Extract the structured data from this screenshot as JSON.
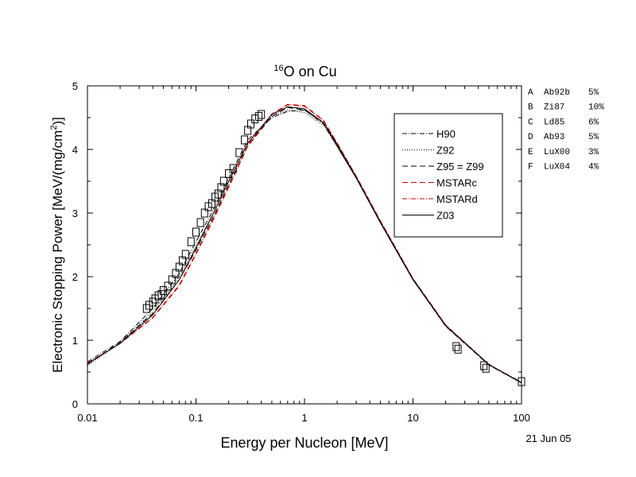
{
  "chart_data": {
    "type": "line",
    "title_sup": "16",
    "title": "O on Cu",
    "xlabel": "Energy per Nucleon [MeV]",
    "ylabel_main": "Electronic Stopping Power [MeV/(mg/cm",
    "ylabel_sup": "2",
    "ylabel_tail": ")]",
    "x_scale": "log",
    "xlim": [
      0.01,
      100
    ],
    "ylim": [
      0,
      5
    ],
    "x_ticks": [
      0.01,
      0.1,
      1,
      10,
      100
    ],
    "x_tick_labels": [
      "0.01",
      "0.1",
      "1",
      "10",
      "100"
    ],
    "y_ticks": [
      0,
      1,
      2,
      3,
      4,
      5
    ],
    "y_tick_labels": [
      "0",
      "1",
      "2",
      "3",
      "4",
      "5"
    ],
    "grid": false,
    "legend_position": "top-right",
    "date": "21 Jun 05",
    "datasets": [
      {
        "label": "A",
        "ref": "Ab92b",
        "err": "5%"
      },
      {
        "label": "B",
        "ref": "Zi87",
        "err": "10%"
      },
      {
        "label": "C",
        "ref": "Ld85",
        "err": "6%"
      },
      {
        "label": "D",
        "ref": "Ab93",
        "err": "5%"
      },
      {
        "label": "E",
        "ref": "LuX00",
        "err": "3%"
      },
      {
        "label": "F",
        "ref": "LuX04",
        "err": "4%"
      }
    ],
    "series": [
      {
        "name": "H90",
        "color": "#000000",
        "dash": "6,2,1,2",
        "x": [
          0.01,
          0.02,
          0.04,
          0.07,
          0.1,
          0.15,
          0.2,
          0.3,
          0.5,
          0.7,
          1,
          1.5,
          2,
          3,
          5,
          10,
          20,
          50,
          100
        ],
        "y": [
          0.66,
          0.98,
          1.5,
          2.05,
          2.55,
          3.1,
          3.55,
          4.15,
          4.5,
          4.6,
          4.62,
          4.4,
          4.05,
          3.55,
          2.85,
          1.95,
          1.23,
          0.62,
          0.34
        ]
      },
      {
        "name": "Z92",
        "color": "#000000",
        "dash": "1,2",
        "x": [
          0.01,
          0.02,
          0.04,
          0.07,
          0.1,
          0.15,
          0.2,
          0.3,
          0.5,
          0.7,
          1,
          1.5,
          2,
          3,
          5,
          10,
          20,
          50,
          100
        ],
        "y": [
          0.6,
          0.96,
          1.45,
          2.0,
          2.48,
          3.05,
          3.5,
          4.1,
          4.52,
          4.62,
          4.58,
          4.38,
          4.05,
          3.55,
          2.85,
          1.95,
          1.22,
          0.61,
          0.33
        ]
      },
      {
        "name": "Z95 = Z99",
        "color": "#000000",
        "dash": "7,4",
        "x": [
          0.01,
          0.02,
          0.04,
          0.07,
          0.1,
          0.15,
          0.2,
          0.3,
          0.5,
          0.7,
          1,
          1.5,
          2,
          3,
          5,
          10,
          20,
          50,
          100
        ],
        "y": [
          0.62,
          0.97,
          1.42,
          1.95,
          2.42,
          3.0,
          3.45,
          4.05,
          4.52,
          4.66,
          4.62,
          4.42,
          4.05,
          3.55,
          2.85,
          1.95,
          1.22,
          0.61,
          0.33
        ]
      },
      {
        "name": "MSTARc",
        "color": "#cc0000",
        "dash": "7,4",
        "x": [
          0.01,
          0.02,
          0.04,
          0.07,
          0.1,
          0.15,
          0.2,
          0.3,
          0.5,
          0.7,
          1,
          1.5,
          2,
          3,
          5,
          10,
          20,
          50,
          100
        ],
        "y": [
          0.64,
          0.95,
          1.35,
          1.85,
          2.35,
          2.95,
          3.4,
          4.05,
          4.55,
          4.7,
          4.68,
          4.45,
          4.1,
          3.58,
          2.88,
          1.97,
          1.24,
          0.62,
          0.33
        ]
      },
      {
        "name": "MSTARd",
        "color": "#cc0000",
        "dash": "6,2,1,2",
        "x": [
          0.01,
          0.02,
          0.04,
          0.07,
          0.1,
          0.15,
          0.2,
          0.3,
          0.5,
          0.7,
          1,
          1.5,
          2,
          3,
          5,
          10,
          20,
          50,
          100
        ],
        "y": [
          0.64,
          0.95,
          1.36,
          1.87,
          2.37,
          2.97,
          3.42,
          4.07,
          4.56,
          4.71,
          4.69,
          4.46,
          4.1,
          3.58,
          2.88,
          1.97,
          1.24,
          0.62,
          0.33
        ]
      },
      {
        "name": "Z03",
        "color": "#000000",
        "dash": "",
        "x": [
          0.01,
          0.02,
          0.04,
          0.07,
          0.1,
          0.15,
          0.2,
          0.3,
          0.5,
          0.7,
          1,
          1.5,
          2,
          3,
          5,
          10,
          20,
          50,
          100
        ],
        "y": [
          0.63,
          0.95,
          1.4,
          1.95,
          2.45,
          3.05,
          3.5,
          4.1,
          4.55,
          4.67,
          4.64,
          4.42,
          4.08,
          3.56,
          2.86,
          1.96,
          1.23,
          0.62,
          0.33
        ]
      }
    ],
    "data_points": [
      {
        "x": 0.035,
        "y": 1.5
      },
      {
        "x": 0.037,
        "y": 1.55
      },
      {
        "x": 0.04,
        "y": 1.6
      },
      {
        "x": 0.042,
        "y": 1.65
      },
      {
        "x": 0.045,
        "y": 1.7
      },
      {
        "x": 0.048,
        "y": 1.72
      },
      {
        "x": 0.05,
        "y": 1.78
      },
      {
        "x": 0.055,
        "y": 1.85
      },
      {
        "x": 0.06,
        "y": 1.95
      },
      {
        "x": 0.065,
        "y": 2.05
      },
      {
        "x": 0.07,
        "y": 2.15
      },
      {
        "x": 0.075,
        "y": 2.25
      },
      {
        "x": 0.08,
        "y": 2.35
      },
      {
        "x": 0.09,
        "y": 2.55
      },
      {
        "x": 0.1,
        "y": 2.7
      },
      {
        "x": 0.11,
        "y": 2.85
      },
      {
        "x": 0.12,
        "y": 3.0
      },
      {
        "x": 0.13,
        "y": 3.1
      },
      {
        "x": 0.14,
        "y": 3.15
      },
      {
        "x": 0.15,
        "y": 3.25
      },
      {
        "x": 0.16,
        "y": 3.3
      },
      {
        "x": 0.17,
        "y": 3.4
      },
      {
        "x": 0.18,
        "y": 3.5
      },
      {
        "x": 0.2,
        "y": 3.62
      },
      {
        "x": 0.22,
        "y": 3.7
      },
      {
        "x": 0.25,
        "y": 3.95
      },
      {
        "x": 0.28,
        "y": 4.15
      },
      {
        "x": 0.3,
        "y": 4.3
      },
      {
        "x": 0.32,
        "y": 4.4
      },
      {
        "x": 0.35,
        "y": 4.48
      },
      {
        "x": 0.38,
        "y": 4.52
      },
      {
        "x": 0.4,
        "y": 4.55
      },
      {
        "x": 25,
        "y": 0.9
      },
      {
        "x": 26,
        "y": 0.86
      },
      {
        "x": 45,
        "y": 0.6
      },
      {
        "x": 47,
        "y": 0.56
      },
      {
        "x": 100,
        "y": 0.35
      }
    ]
  }
}
